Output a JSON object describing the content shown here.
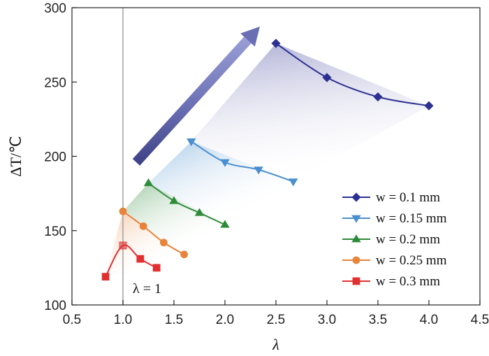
{
  "chart_data": {
    "type": "line",
    "xlabel": "λ",
    "ylabel": "ΔT/℃",
    "xlim": [
      0.5,
      4.5
    ],
    "ylim": [
      100,
      300
    ],
    "x_ticks": [
      0.5,
      1.0,
      1.5,
      2.0,
      2.5,
      3.0,
      3.5,
      4.0,
      4.5
    ],
    "x_tick_labels": [
      "0.5",
      "1.0",
      "1.5",
      "2.0",
      "2.5",
      "3.0",
      "3.5",
      "4.0",
      "4.5"
    ],
    "y_ticks": [
      100,
      150,
      200,
      250,
      300
    ],
    "y_tick_labels": [
      "100",
      "150",
      "200",
      "250",
      "300"
    ],
    "grid": false,
    "legend_position": "bottom-right",
    "reference_line": {
      "x": 1.0,
      "label": "λ = 1"
    },
    "series": [
      {
        "name": "w = 0.1 mm",
        "color": "#2e3192",
        "marker": "diamond",
        "x": [
          2.5,
          3.0,
          3.5,
          4.0
        ],
        "y": [
          276,
          253,
          240,
          234
        ]
      },
      {
        "name": "w = 0.15 mm",
        "color": "#4a8fcf",
        "marker": "triangle-down",
        "x": [
          1.67,
          2.0,
          2.33,
          2.67
        ],
        "y": [
          210,
          196,
          191,
          183
        ]
      },
      {
        "name": "w = 0.2 mm",
        "color": "#2e8b3a",
        "marker": "triangle-up",
        "x": [
          1.25,
          1.5,
          1.75,
          2.0
        ],
        "y": [
          182,
          170,
          162,
          154
        ]
      },
      {
        "name": "w = 0.25 mm",
        "color": "#e8833a",
        "marker": "circle",
        "x": [
          1.0,
          1.2,
          1.4,
          1.6
        ],
        "y": [
          163,
          153,
          142,
          134
        ]
      },
      {
        "name": "w = 0.3 mm",
        "color": "#e03030",
        "marker": "square",
        "x": [
          0.83,
          1.0,
          1.17,
          1.33
        ],
        "y": [
          119,
          140,
          131,
          125
        ]
      }
    ]
  }
}
